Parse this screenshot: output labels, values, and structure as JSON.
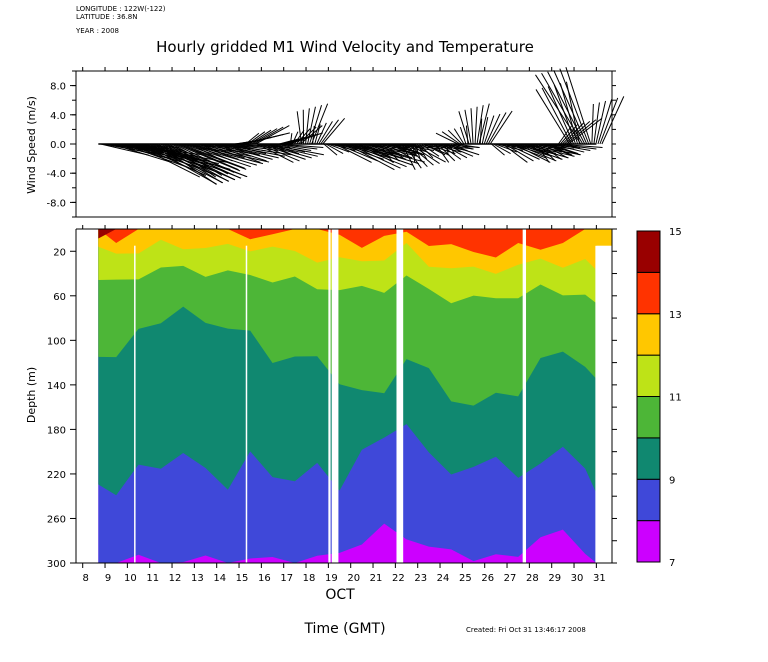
{
  "header": {
    "longitude": "LONGITUDE : 122W(-122)",
    "latitude": "LATITUDE : 36.8N",
    "year": "YEAR : 2008"
  },
  "footer": {
    "created": "Created: Fri Oct 31 13:46:17 2008"
  },
  "chart_data": [
    {
      "type": "line",
      "subtype": "vector-stick-plot",
      "title": "Hourly gridded M1 Wind Velocity and Temperature",
      "ylabel": "Wind Speed (m/s)",
      "ylim": [
        -10,
        10
      ],
      "yticks": [
        8.0,
        4.0,
        0.0,
        -4.0,
        -8.0
      ],
      "ytick_labels": [
        "8.0",
        "4.0",
        "0.0",
        "-4.0",
        "-8.0"
      ],
      "xlim": [
        8,
        32
      ],
      "notes": "Wind vectors per hour plotted as sticks from 0.0 baseline; values approximate",
      "series": [
        {
          "name": "wind-sticks",
          "day": [
            8.8,
            9.3,
            9.8,
            10.3,
            10.8,
            11.3,
            11.8,
            12.3,
            12.8,
            13.3,
            13.8,
            14.3,
            14.8,
            15.3,
            15.8,
            16.3,
            16.8,
            17.3,
            17.8,
            18.3,
            18.8,
            19.3,
            19.8,
            20.3,
            20.8,
            21.3,
            21.8,
            22.3,
            22.8,
            23.3,
            23.8,
            24.3,
            24.8,
            25.3,
            25.8,
            26.3,
            26.8,
            27.3,
            27.8,
            28.3,
            28.8,
            29.3,
            29.8,
            30.3,
            30.8
          ],
          "u": [
            5,
            6,
            7,
            6.5,
            7,
            6,
            5,
            6,
            4,
            3,
            5,
            4,
            3,
            2,
            4,
            3,
            2,
            1,
            0.5,
            1,
            2,
            4,
            5,
            4,
            3,
            2,
            3,
            2,
            1,
            3,
            2,
            1,
            -1,
            0,
            1,
            2,
            3,
            4,
            3,
            2,
            3,
            2,
            -2,
            -3,
            1
          ],
          "v": [
            -1,
            -2,
            -3,
            -4,
            -5,
            -5,
            -4,
            -3,
            -2,
            -1,
            -2,
            -1,
            1,
            2,
            -2,
            -1,
            1,
            2,
            5,
            3,
            -1,
            -2,
            -3,
            -2,
            -1,
            -2,
            -1,
            -3,
            -2,
            -1,
            -2,
            -1,
            2,
            5,
            4,
            -1,
            -2,
            -2,
            -1,
            -2,
            -1,
            3,
            8,
            10,
            6
          ]
        }
      ]
    },
    {
      "type": "heatmap",
      "subtype": "filled-contour",
      "ylabel": "Depth (m)",
      "xlabel": "OCT",
      "xlabel2": "Time (GMT)",
      "ylim": [
        300,
        0
      ],
      "yticks": [
        20,
        60,
        100,
        140,
        180,
        220,
        260,
        300
      ],
      "ytick_labels": [
        "20",
        "60",
        "100",
        "140",
        "180",
        "220",
        "260",
        "300"
      ],
      "xlim": [
        7.7,
        31.7
      ],
      "xticks": [
        8,
        9,
        10,
        11,
        12,
        13,
        14,
        15,
        16,
        17,
        18,
        19,
        20,
        21,
        22,
        23,
        24,
        25,
        26,
        27,
        28,
        29,
        30,
        31
      ],
      "xtick_labels": [
        "8",
        "9",
        "10",
        "11",
        "12",
        "13",
        "14",
        "15",
        "16",
        "17",
        "18",
        "19",
        "20",
        "21",
        "22",
        "23",
        "24",
        "25",
        "26",
        "27",
        "28",
        "29",
        "30",
        "31"
      ],
      "data_start_day": 8.7,
      "data_end_day": 31.0,
      "gaps_days": [
        [
          10.3,
          10.35
        ],
        [
          15.3,
          15.35
        ],
        [
          19.0,
          19.1
        ],
        [
          19.15,
          19.45
        ],
        [
          22.05,
          22.35
        ],
        [
          27.7,
          27.85
        ]
      ],
      "colorbar": {
        "levels": [
          7,
          8,
          9,
          10,
          11,
          12,
          13,
          14,
          15
        ],
        "tick_labels": [
          "15",
          "13",
          "11",
          "9",
          "7"
        ],
        "colors": [
          "#cc00ff",
          "#3f48d9",
          "#108870",
          "#4db637",
          "#bee317",
          "#ffc700",
          "#ff3300",
          "#990000"
        ]
      },
      "isotherm_depths_m": {
        "day": [
          8.7,
          9.5,
          10.5,
          11.5,
          12.5,
          13.5,
          14.5,
          15.5,
          16.5,
          17.5,
          18.5,
          19.5,
          20.5,
          21.5,
          22.5,
          23.5,
          24.5,
          25.5,
          26.5,
          27.5,
          28.5,
          29.5,
          30.5,
          31.0
        ],
        "t8": [
          300,
          296,
          298,
          299,
          298,
          298,
          299,
          298,
          297,
          298,
          298,
          290,
          280,
          270,
          275,
          285,
          292,
          293,
          295,
          296,
          272,
          275,
          290,
          300
        ],
        "t9": [
          225,
          240,
          215,
          210,
          205,
          215,
          230,
          205,
          220,
          225,
          215,
          230,
          200,
          190,
          170,
          205,
          220,
          210,
          210,
          220,
          210,
          200,
          210,
          240
        ],
        "t10": [
          110,
          120,
          88,
          82,
          75,
          80,
          90,
          95,
          115,
          118,
          115,
          135,
          150,
          145,
          115,
          130,
          150,
          160,
          150,
          145,
          120,
          110,
          120,
          140
        ],
        "t11": [
          45,
          50,
          40,
          37,
          35,
          38,
          42,
          40,
          45,
          48,
          50,
          55,
          55,
          52,
          45,
          55,
          62,
          65,
          60,
          60,
          55,
          55,
          60,
          70
        ],
        "t12": [
          20,
          22,
          18,
          15,
          15,
          16,
          18,
          15,
          18,
          22,
          25,
          30,
          28,
          25,
          18,
          30,
          35,
          38,
          35,
          35,
          28,
          30,
          32,
          35
        ],
        "t13": [
          5,
          8,
          0,
          0,
          0,
          0,
          0,
          5,
          10,
          0,
          0,
          10,
          12,
          8,
          5,
          10,
          18,
          20,
          22,
          18,
          15,
          12,
          0,
          0
        ],
        "t14": [
          10,
          0,
          0,
          0,
          0,
          0,
          0,
          0,
          0,
          0,
          0,
          0,
          0,
          0,
          0,
          0,
          0,
          0,
          0,
          0,
          0,
          0,
          0,
          0
        ]
      }
    }
  ]
}
